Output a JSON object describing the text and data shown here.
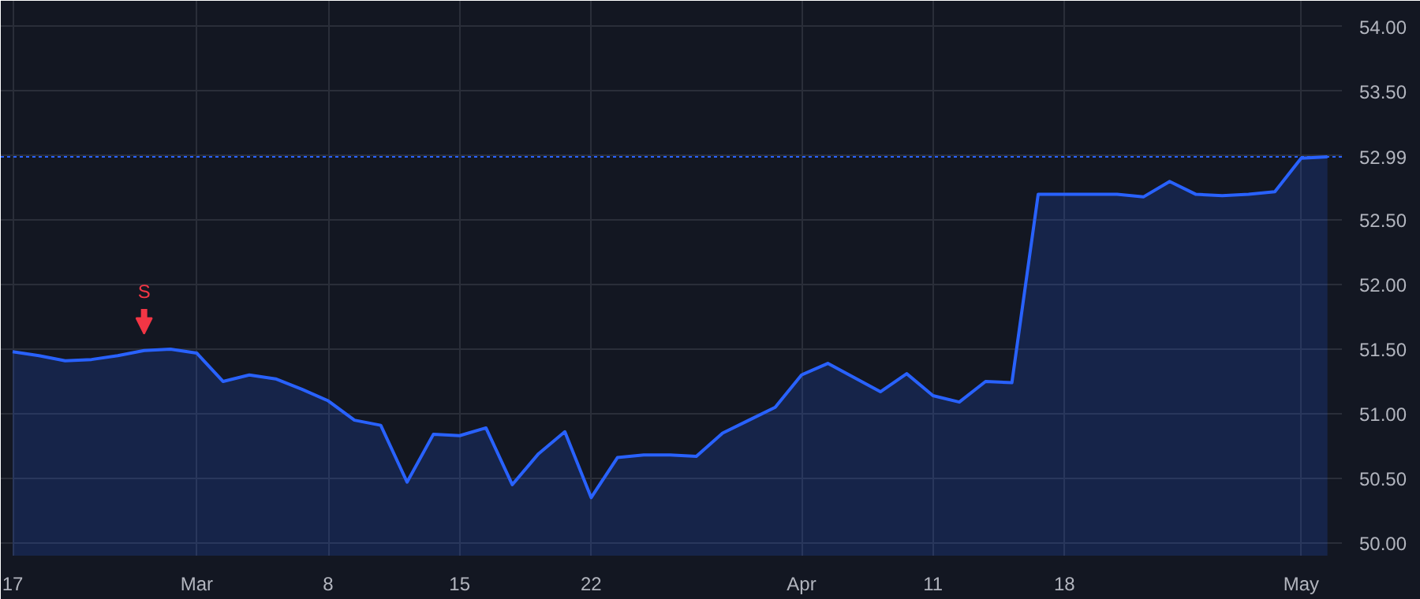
{
  "chart_data": {
    "type": "area",
    "categories": [
      "17",
      null,
      null,
      null,
      null,
      null,
      null,
      "Mar",
      null,
      null,
      null,
      null,
      "8",
      null,
      null,
      null,
      null,
      "15",
      null,
      null,
      null,
      null,
      "22",
      null,
      null,
      null,
      null,
      null,
      null,
      null,
      "Apr",
      null,
      null,
      null,
      null,
      "11",
      null,
      null,
      null,
      null,
      "18",
      null,
      null,
      null,
      null,
      null,
      null,
      null,
      null,
      "May",
      null
    ],
    "series": [
      {
        "color": "#2962ff",
        "values": [
          51.48,
          51.45,
          51.41,
          51.42,
          51.45,
          51.49,
          51.5,
          51.47,
          51.25,
          51.3,
          51.27,
          51.19,
          51.1,
          50.95,
          50.91,
          50.47,
          50.84,
          50.83,
          50.89,
          50.45,
          50.69,
          50.86,
          50.35,
          50.66,
          50.68,
          50.68,
          50.67,
          50.85,
          50.95,
          51.05,
          51.3,
          51.39,
          51.28,
          51.17,
          51.31,
          51.14,
          51.09,
          51.25,
          51.24,
          52.7,
          52.7,
          52.7,
          52.7,
          52.68,
          52.8,
          52.7,
          52.69,
          52.7,
          52.72,
          52.98,
          52.99
        ]
      }
    ],
    "ylim": [
      49.9,
      54.2
    ],
    "yticks": [
      {
        "value": 50,
        "label": "50.00"
      },
      {
        "value": 50.5,
        "label": "50.50"
      },
      {
        "value": 51,
        "label": "51.00"
      },
      {
        "value": 51.5,
        "label": "51.50"
      },
      {
        "value": 52,
        "label": "52.00"
      },
      {
        "value": 52.5,
        "label": "52.50"
      },
      {
        "value": 53,
        "label": null
      },
      {
        "value": 53.5,
        "label": "53.50"
      },
      {
        "value": 54,
        "label": "54.00"
      }
    ],
    "ref_lines": [
      {
        "axis": "y",
        "value": 52.99,
        "label": "52.99",
        "color": "#2962ff",
        "line_style": "dotted"
      }
    ],
    "annotations": [
      {
        "text": "S",
        "y": 51.49
      }
    ],
    "grid": true,
    "marker": "none",
    "line_style": "solid"
  }
}
